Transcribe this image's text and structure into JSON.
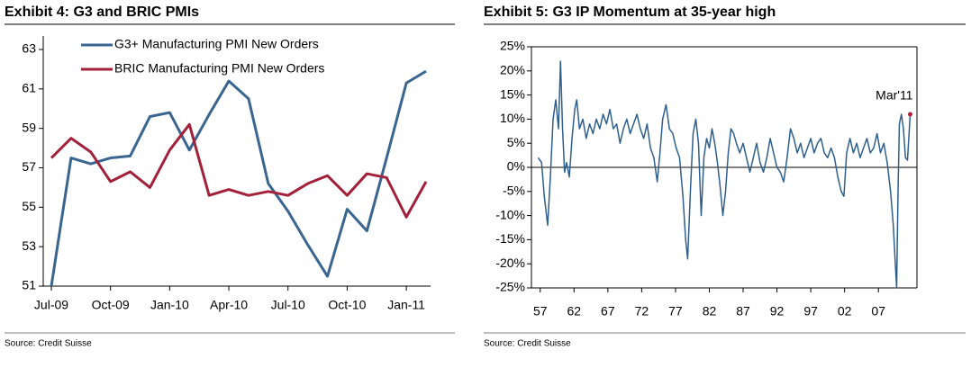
{
  "chart_data": [
    {
      "type": "line",
      "title": "Exhibit 4: G3 and BRIC PMIs",
      "source": "Source: Credit Suisse",
      "categories": [
        "Jul-09",
        null,
        null,
        "Oct-09",
        null,
        null,
        "Jan-10",
        null,
        null,
        "Apr-10",
        null,
        null,
        "Jul-10",
        null,
        null,
        "Oct-10",
        null,
        null,
        "Jan-11",
        null
      ],
      "series": [
        {
          "name": "G3+ Manufacturing PMI New Orders",
          "color": "#3a6590",
          "values": [
            51.0,
            57.5,
            57.2,
            57.5,
            57.6,
            59.6,
            59.8,
            57.9,
            59.7,
            61.4,
            60.5,
            56.2,
            54.8,
            53.1,
            51.5,
            54.9,
            53.8,
            57.5,
            61.3,
            61.9
          ]
        },
        {
          "name": "BRIC Manufacturing PMI New Orders",
          "color": "#a3203a",
          "values": [
            57.5,
            58.5,
            57.8,
            56.3,
            56.8,
            56.0,
            57.9,
            59.2,
            55.6,
            55.9,
            55.6,
            55.8,
            55.6,
            56.2,
            56.6,
            55.6,
            56.7,
            56.5,
            54.5,
            56.3
          ]
        }
      ],
      "ylim": [
        51,
        63
      ],
      "yticks": [
        51,
        53,
        55,
        57,
        59,
        61,
        63
      ],
      "legend": "upper left",
      "grid": false
    },
    {
      "type": "line",
      "title": "Exhibit 5: G3 IP Momentum at 35-year high",
      "source": "Source: Credit Suisse",
      "annotation": "Mar'11",
      "zero_line": true,
      "x": [
        1956.7,
        1957.2,
        1957.6,
        1958.1,
        1958.5,
        1958.9,
        1959.3,
        1959.7,
        1960.0,
        1960.3,
        1960.6,
        1960.9,
        1961.3,
        1961.7,
        1962.1,
        1962.4,
        1962.8,
        1963.3,
        1963.8,
        1964.3,
        1964.8,
        1965.3,
        1965.8,
        1966.3,
        1966.8,
        1967.3,
        1967.8,
        1968.3,
        1968.8,
        1969.3,
        1969.8,
        1970.3,
        1970.8,
        1971.3,
        1971.8,
        1972.3,
        1972.8,
        1973.3,
        1973.8,
        1974.3,
        1974.7,
        1975.1,
        1975.6,
        1976.1,
        1976.6,
        1977.1,
        1977.6,
        1978.1,
        1978.5,
        1978.8,
        1979.2,
        1979.6,
        1980.0,
        1980.4,
        1980.8,
        1981.2,
        1981.6,
        1982.0,
        1982.4,
        1982.8,
        1983.2,
        1983.6,
        1984.0,
        1984.4,
        1984.8,
        1985.2,
        1985.6,
        1986.0,
        1986.5,
        1987.0,
        1987.5,
        1988.0,
        1988.5,
        1989.0,
        1989.5,
        1990.0,
        1990.5,
        1991.0,
        1991.5,
        1992.0,
        1992.5,
        1993.0,
        1993.5,
        1994.0,
        1994.5,
        1995.0,
        1995.5,
        1996.0,
        1996.5,
        1997.0,
        1997.5,
        1998.0,
        1998.5,
        1999.0,
        1999.5,
        2000.0,
        2000.5,
        2001.0,
        2001.5,
        2001.9,
        2002.3,
        2002.8,
        2003.3,
        2003.8,
        2004.3,
        2004.8,
        2005.3,
        2005.8,
        2006.3,
        2006.8,
        2007.3,
        2007.8,
        2008.3,
        2008.8,
        2009.2,
        2009.5,
        2009.7,
        2009.9,
        2010.1,
        2010.4,
        2010.7,
        2011.0,
        2011.3,
        2011.7
      ],
      "series": [
        {
          "name": "G3 IP Momentum",
          "color": "#2f5f8f",
          "values": [
            2,
            1,
            -6,
            -12,
            -2,
            10,
            14,
            8,
            22,
            8,
            -1,
            1,
            -2,
            6,
            12,
            14,
            8,
            10,
            6,
            9,
            7,
            10,
            8,
            11,
            9,
            12,
            8,
            9,
            5,
            8,
            10,
            7,
            9,
            11,
            8,
            6,
            9,
            4,
            2,
            -3,
            3,
            10,
            13,
            8,
            7,
            4,
            2,
            -6,
            -15,
            -19,
            -5,
            7,
            10,
            5,
            -10,
            2,
            6,
            4,
            8,
            5,
            1,
            -4,
            -10,
            -5,
            3,
            8,
            7,
            5,
            3,
            5,
            2,
            -1,
            2,
            5,
            1,
            -1,
            2,
            6,
            3,
            0,
            -1,
            -3,
            2,
            8,
            6,
            3,
            5,
            2,
            4,
            6,
            3,
            5,
            6,
            3,
            2,
            4,
            2,
            -2,
            -5,
            -6,
            3,
            6,
            3,
            5,
            2,
            4,
            6,
            3,
            4,
            7,
            3,
            5,
            1,
            -5,
            -12,
            -20,
            -25,
            -5,
            9,
            11,
            8,
            2,
            1.5,
            11
          ]
        }
      ],
      "xlim": [
        1955.7,
        2012.7
      ],
      "xticks": [
        {
          "value": 1957,
          "label": "57"
        },
        {
          "value": 1962,
          "label": "62"
        },
        {
          "value": 1967,
          "label": "67"
        },
        {
          "value": 1972,
          "label": "72"
        },
        {
          "value": 1977,
          "label": "77"
        },
        {
          "value": 1982,
          "label": "82"
        },
        {
          "value": 1987,
          "label": "87"
        },
        {
          "value": 1992,
          "label": "92"
        },
        {
          "value": 1997,
          "label": "97"
        },
        {
          "value": 2002,
          "label": "02"
        },
        {
          "value": 2007,
          "label": "07"
        }
      ],
      "ylim": [
        -25,
        25
      ],
      "yticks": [
        {
          "value": -25,
          "label": "-25%"
        },
        {
          "value": -20,
          "label": "-20%"
        },
        {
          "value": -15,
          "label": "-15%"
        },
        {
          "value": -10,
          "label": "-10%"
        },
        {
          "value": -5,
          "label": "-5%"
        },
        {
          "value": 0,
          "label": "0%"
        },
        {
          "value": 5,
          "label": "5%"
        },
        {
          "value": 10,
          "label": "10%"
        },
        {
          "value": 15,
          "label": "15%"
        },
        {
          "value": 20,
          "label": "20%"
        },
        {
          "value": 25,
          "label": "25%"
        }
      ],
      "grid": false
    }
  ]
}
